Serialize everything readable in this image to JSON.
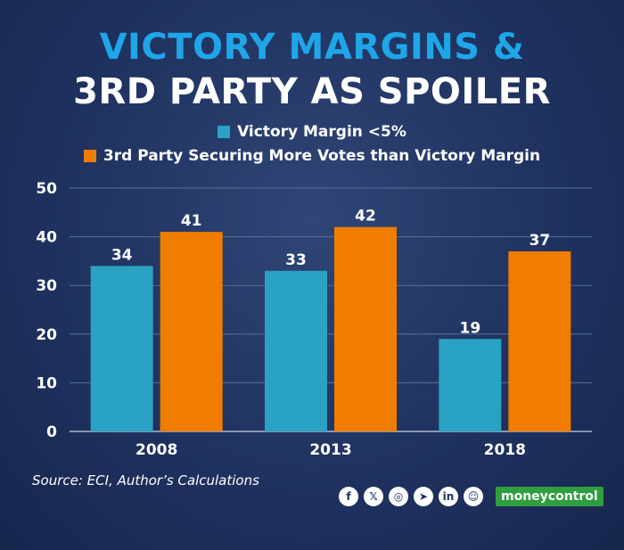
{
  "title_line1": "VICTORY MARGINS &",
  "title_line2": "3RD PARTY AS SPOILER",
  "source": "Source: ECI, Author’s Calculations",
  "brand": "moneycontrol",
  "social_icons": [
    "facebook-icon",
    "x-icon",
    "instagram-icon",
    "telegram-icon",
    "linkedin-icon",
    "snapchat-icon"
  ],
  "colors": {
    "series1": "#2aa2c3",
    "series2": "#f07d00",
    "title_accent": "#1ea6e8"
  },
  "chart_data": {
    "type": "bar",
    "categories": [
      "2008",
      "2013",
      "2018"
    ],
    "series": [
      {
        "name": "Victory Margin <5%",
        "values": [
          34,
          33,
          19
        ]
      },
      {
        "name": "3rd Party Securing More Votes than Victory Margin",
        "values": [
          41,
          42,
          37
        ]
      }
    ],
    "ylim": [
      0,
      50
    ],
    "yticks": [
      0,
      10,
      20,
      30,
      40,
      50
    ],
    "grid": true,
    "legend": "top-center"
  }
}
